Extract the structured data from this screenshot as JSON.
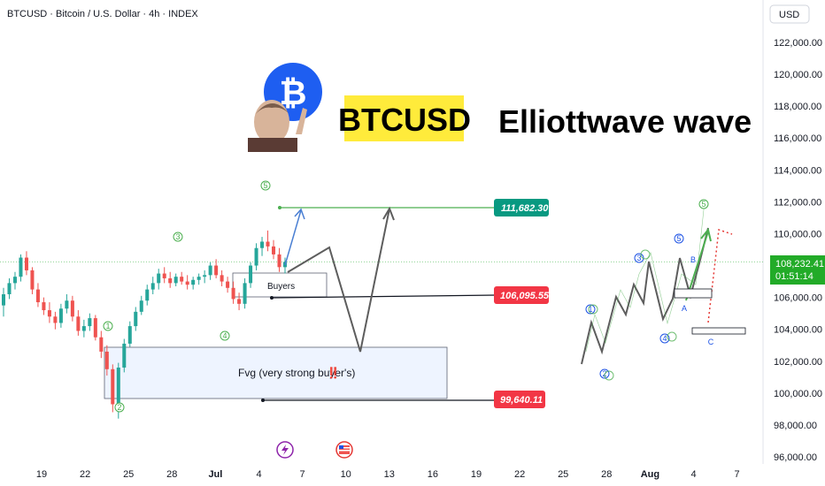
{
  "header": {
    "symbol_line": "BTCUSD · Bitcoin / U.S. Dollar · 4h · INDEX",
    "currency_button": "USD"
  },
  "overlay": {
    "btcusd_badge": "BTCUSD",
    "headline": "Elliottwave wave",
    "buyers_label": "Buyers",
    "fvg_label": "Fvg (very strong buyer's)",
    "fvg_emoji": "‼️"
  },
  "colors": {
    "bull": "#26a69a",
    "bear": "#ef5350",
    "green_wave": "#4caf50",
    "blue_wave": "#1e53e5",
    "badge_yellow": "#ffeb3b",
    "target_green": "#089981",
    "level_red": "#f23645",
    "current_price_green": "#22ab28"
  },
  "chart_data": {
    "type": "candlestick",
    "ylim": [
      95500,
      123000
    ],
    "y_ticks": [
      96000,
      98000,
      100000,
      102000,
      104000,
      106000,
      108000,
      110000,
      112000,
      114000,
      116000,
      118000,
      120000,
      122000
    ],
    "y_tick_labels": [
      "96,000.00",
      "98,000.00",
      "100,000.00",
      "102,000.00",
      "104,000.00",
      "106,000.00",
      "108,000.00",
      "110,000.00",
      "112,000.00",
      "114,000.00",
      "116,000.00",
      "118,000.00",
      "120,000.00",
      "122,000.00"
    ],
    "x_tick_labels": [
      "19",
      "22",
      "25",
      "28",
      "Jul",
      "4",
      "7",
      "10",
      "13",
      "16",
      "19",
      "22",
      "25",
      "28",
      "Aug",
      "4",
      "7"
    ],
    "current_price": "108,232.41",
    "countdown": "01:51:14",
    "levels": [
      {
        "label": "111,682.30",
        "value": 111682.3,
        "color": "target"
      },
      {
        "label": "106,095.55",
        "value": 106095.55,
        "color": "red"
      },
      {
        "label": "99,640.11",
        "value": 99640.11,
        "color": "red"
      }
    ],
    "zones": [
      {
        "name": "Buyers",
        "from": 106100,
        "to": 107500
      },
      {
        "name": "Fvg",
        "from": 99600,
        "to": 103000
      }
    ],
    "wave_labels": [
      "1",
      "2",
      "3",
      "4",
      "5"
    ],
    "diagram_labels": [
      "A",
      "B",
      "C"
    ],
    "candles": [
      [
        105500,
        106600,
        104800,
        106200
      ],
      [
        106200,
        107200,
        105900,
        106900
      ],
      [
        106900,
        107600,
        106500,
        107300
      ],
      [
        107300,
        108700,
        107000,
        108500
      ],
      [
        108500,
        108900,
        107400,
        107700
      ],
      [
        107700,
        107900,
        106200,
        106500
      ],
      [
        106500,
        106900,
        105400,
        105700
      ],
      [
        105700,
        106000,
        104900,
        105200
      ],
      [
        105200,
        105700,
        104400,
        104800
      ],
      [
        104800,
        105100,
        104000,
        104400
      ],
      [
        104400,
        105600,
        104100,
        105300
      ],
      [
        105300,
        106200,
        105000,
        105800
      ],
      [
        105800,
        106100,
        104500,
        104800
      ],
      [
        104800,
        105200,
        103600,
        103900
      ],
      [
        103900,
        104600,
        103500,
        104200
      ],
      [
        104200,
        105000,
        103900,
        104700
      ],
      [
        104700,
        104900,
        103300,
        103500
      ],
      [
        103500,
        103900,
        102200,
        102600
      ],
      [
        102600,
        103000,
        101100,
        101500
      ],
      [
        101500,
        101800,
        98800,
        99300
      ],
      [
        99300,
        101900,
        98400,
        101600
      ],
      [
        101600,
        103400,
        101300,
        103100
      ],
      [
        103100,
        104500,
        102900,
        104200
      ],
      [
        104200,
        105400,
        103900,
        105100
      ],
      [
        105100,
        106100,
        104900,
        105800
      ],
      [
        105800,
        106800,
        105500,
        106500
      ],
      [
        106500,
        107300,
        106200,
        106900
      ],
      [
        106900,
        107800,
        106500,
        107500
      ],
      [
        107500,
        107900,
        106900,
        107200
      ],
      [
        107200,
        107600,
        106600,
        106900
      ],
      [
        106900,
        107500,
        106700,
        107300
      ],
      [
        107300,
        107600,
        106800,
        107000
      ],
      [
        107000,
        107400,
        106500,
        106800
      ],
      [
        106800,
        107300,
        106500,
        107100
      ],
      [
        107100,
        107500,
        106800,
        107300
      ],
      [
        107300,
        107700,
        106900,
        107400
      ],
      [
        107400,
        108200,
        107100,
        108000
      ],
      [
        108000,
        108400,
        107200,
        107400
      ],
      [
        107400,
        107700,
        106700,
        107000
      ],
      [
        107000,
        107300,
        106300,
        106600
      ],
      [
        106600,
        107000,
        105600,
        105900
      ],
      [
        105900,
        106300,
        105200,
        105600
      ],
      [
        105600,
        107200,
        105300,
        106900
      ],
      [
        106900,
        108200,
        106600,
        108000
      ],
      [
        108000,
        109400,
        107700,
        109100
      ],
      [
        109100,
        109800,
        108600,
        109500
      ],
      [
        109500,
        110200,
        108900,
        109200
      ],
      [
        109200,
        109600,
        108400,
        108700
      ],
      [
        108700,
        109100,
        107600,
        107900
      ],
      [
        107900,
        108500,
        107500,
        108232
      ]
    ]
  }
}
